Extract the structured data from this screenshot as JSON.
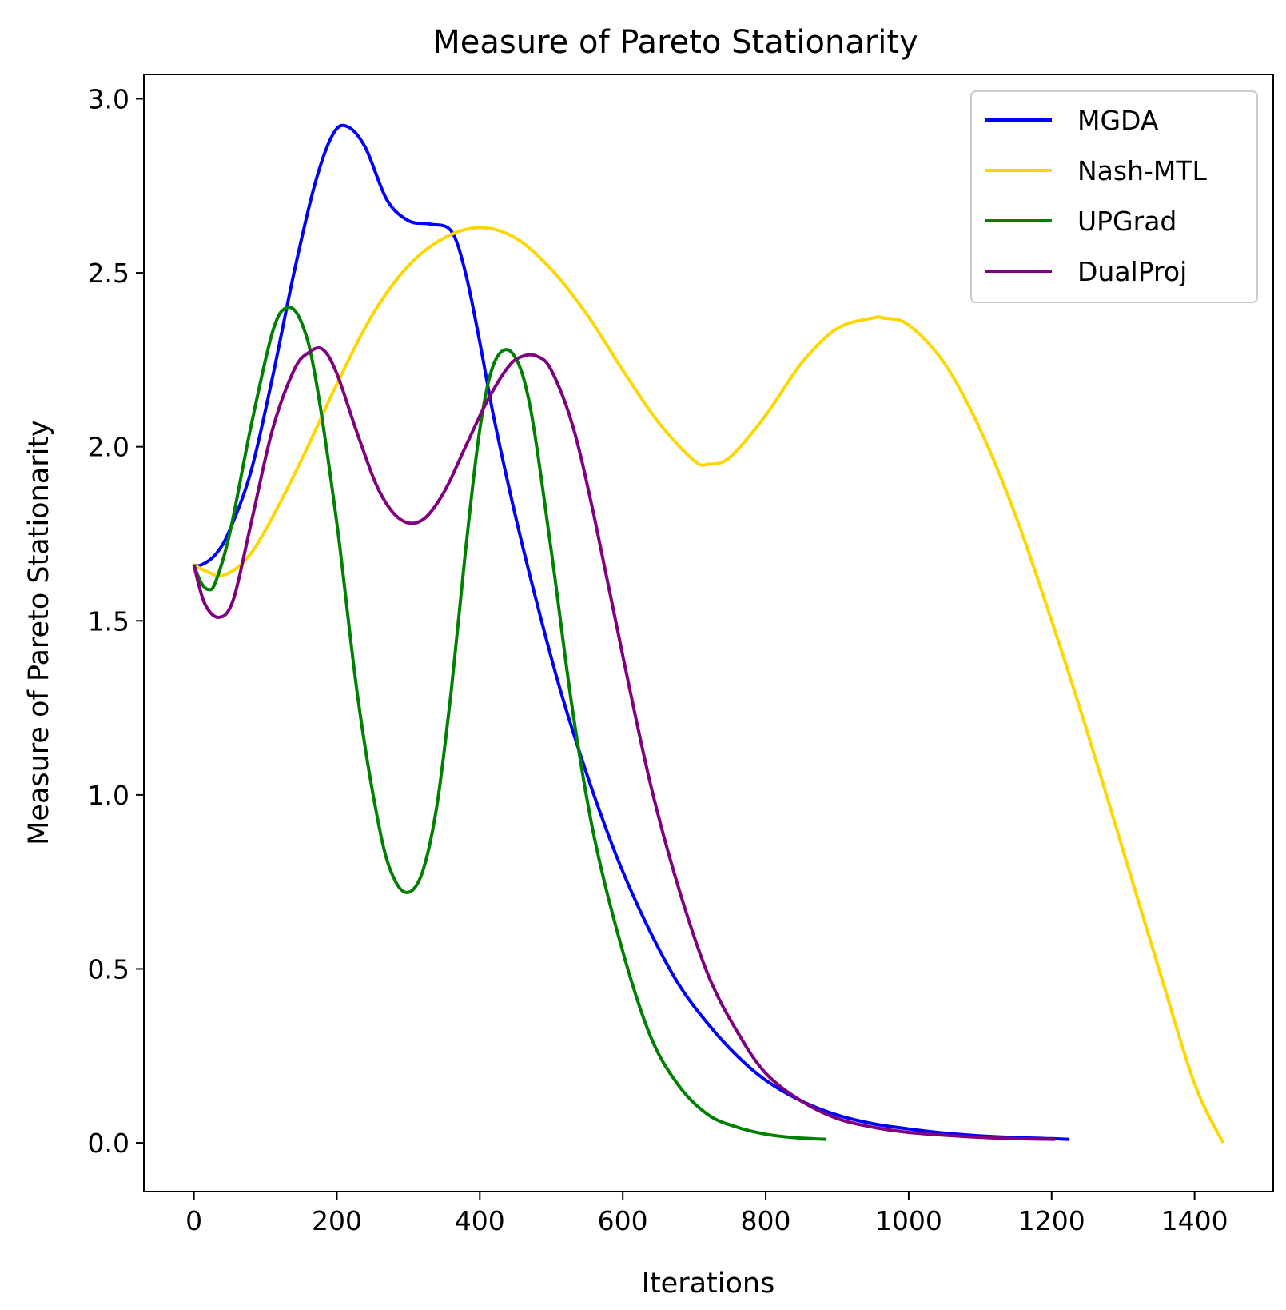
{
  "chart_data": {
    "type": "line",
    "title": "Measure of Pareto Stationarity",
    "xlabel": "Iterations",
    "ylabel": "Measure of Pareto Stationarity",
    "xlim": [
      -70,
      1510
    ],
    "ylim": [
      -0.14,
      3.07
    ],
    "xticks": [
      0,
      200,
      400,
      600,
      800,
      1000,
      1200,
      1400
    ],
    "yticks": [
      0.0,
      0.5,
      1.0,
      1.5,
      2.0,
      2.5,
      3.0
    ],
    "grid": false,
    "legend_position": "top-right",
    "series": [
      {
        "name": "MGDA",
        "color": "#0000ff",
        "x": [
          0,
          10,
          30,
          50,
          80,
          110,
          140,
          170,
          195,
          215,
          240,
          270,
          300,
          330,
          360,
          380,
          400,
          420,
          450,
          480,
          510,
          540,
          570,
          600,
          640,
          680,
          720,
          760,
          800,
          850,
          900,
          950,
          1000,
          1050,
          1100,
          1150,
          1200,
          1225
        ],
        "y": [
          1.66,
          1.66,
          1.69,
          1.76,
          1.93,
          2.2,
          2.5,
          2.76,
          2.9,
          2.92,
          2.86,
          2.71,
          2.65,
          2.64,
          2.62,
          2.5,
          2.3,
          2.08,
          1.8,
          1.55,
          1.32,
          1.12,
          0.94,
          0.78,
          0.6,
          0.45,
          0.34,
          0.25,
          0.18,
          0.12,
          0.08,
          0.055,
          0.04,
          0.028,
          0.02,
          0.015,
          0.012,
          0.01
        ]
      },
      {
        "name": "Nash-MTL",
        "color": "#ffd700",
        "x": [
          0,
          20,
          40,
          70,
          100,
          150,
          200,
          250,
          300,
          350,
          400,
          450,
          500,
          550,
          600,
          650,
          700,
          720,
          750,
          800,
          850,
          900,
          950,
          965,
          1000,
          1050,
          1100,
          1150,
          1200,
          1250,
          1300,
          1350,
          1400,
          1440
        ],
        "y": [
          1.66,
          1.64,
          1.63,
          1.67,
          1.76,
          1.96,
          2.18,
          2.38,
          2.52,
          2.6,
          2.63,
          2.6,
          2.51,
          2.38,
          2.22,
          2.07,
          1.96,
          1.95,
          1.97,
          2.09,
          2.24,
          2.34,
          2.37,
          2.37,
          2.35,
          2.24,
          2.05,
          1.8,
          1.5,
          1.18,
          0.84,
          0.5,
          0.17,
          0.0
        ]
      },
      {
        "name": "UPGrad",
        "color": "#008000",
        "x": [
          0,
          10,
          20,
          30,
          50,
          80,
          110,
          130,
          150,
          170,
          200,
          230,
          260,
          280,
          300,
          320,
          340,
          360,
          380,
          400,
          420,
          445,
          470,
          500,
          530,
          560,
          600,
          640,
          680,
          720,
          760,
          800,
          840,
          885
        ],
        "y": [
          1.66,
          1.61,
          1.59,
          1.61,
          1.75,
          2.06,
          2.33,
          2.4,
          2.36,
          2.2,
          1.78,
          1.27,
          0.9,
          0.76,
          0.72,
          0.78,
          0.97,
          1.3,
          1.7,
          2.05,
          2.24,
          2.27,
          2.12,
          1.7,
          1.24,
          0.88,
          0.55,
          0.3,
          0.16,
          0.08,
          0.045,
          0.025,
          0.015,
          0.01
        ]
      },
      {
        "name": "DualProj",
        "color": "#800080",
        "x": [
          0,
          15,
          35,
          55,
          80,
          110,
          140,
          160,
          180,
          200,
          230,
          260,
          290,
          320,
          350,
          380,
          410,
          440,
          460,
          480,
          500,
          530,
          560,
          600,
          640,
          680,
          720,
          760,
          800,
          850,
          900,
          950,
          1000,
          1050,
          1100,
          1150,
          1205
        ],
        "y": [
          1.66,
          1.55,
          1.51,
          1.56,
          1.78,
          2.05,
          2.22,
          2.27,
          2.28,
          2.21,
          2.03,
          1.87,
          1.79,
          1.79,
          1.87,
          2.0,
          2.13,
          2.23,
          2.26,
          2.26,
          2.22,
          2.06,
          1.8,
          1.4,
          1.02,
          0.72,
          0.48,
          0.32,
          0.2,
          0.12,
          0.07,
          0.045,
          0.03,
          0.022,
          0.016,
          0.012,
          0.01
        ]
      }
    ]
  }
}
